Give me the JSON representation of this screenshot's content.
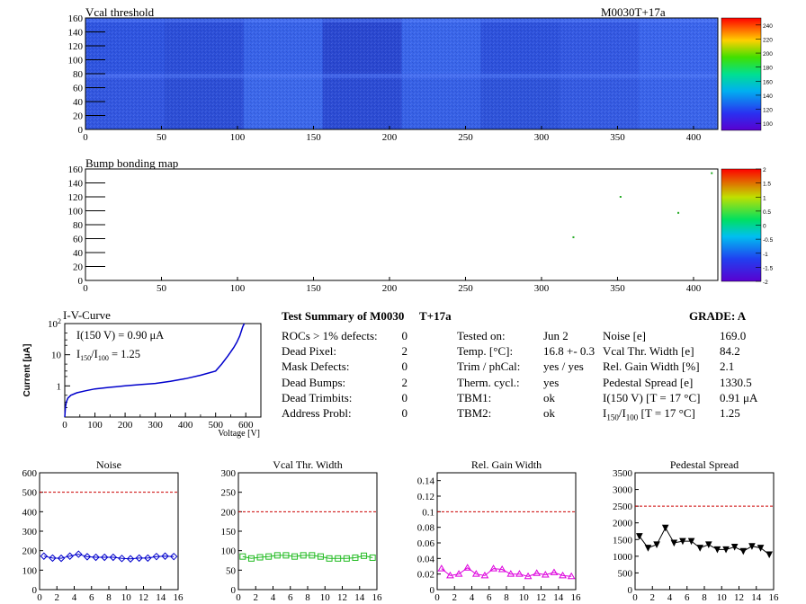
{
  "module_label": "M0030T+17a",
  "colors": {
    "map_base": "#3b5de0",
    "red_line": "#cc0000",
    "iv_line": "#0000cc",
    "noise": "#0000cc",
    "vcal": "#22bb22",
    "gain": "#dd00dd",
    "pedestal": "#000000"
  },
  "vcal_map": {
    "title": "Vcal threshold",
    "x_ticks": [
      "0",
      "50",
      "100",
      "150",
      "200",
      "250",
      "300",
      "350",
      "400"
    ],
    "y_ticks": [
      "0",
      "20",
      "40",
      "60",
      "80",
      "100",
      "120",
      "140",
      "160"
    ],
    "xlim": [
      0,
      416
    ],
    "ylim": [
      0,
      160
    ],
    "z_ticks": [
      "100",
      "120",
      "140",
      "160",
      "180",
      "200",
      "220",
      "240"
    ]
  },
  "bump_map": {
    "title": "Bump bonding map",
    "x_ticks": [
      "0",
      "50",
      "100",
      "150",
      "200",
      "250",
      "300",
      "350",
      "400"
    ],
    "y_ticks": [
      "0",
      "20",
      "40",
      "60",
      "80",
      "100",
      "120",
      "140",
      "160"
    ],
    "z_ticks": [
      "-2",
      "-1.5",
      "-1",
      "-0.5",
      "0",
      "0.5",
      "1",
      "1.5",
      "2"
    ]
  },
  "iv": {
    "title": "I-V-Curve",
    "i150": "I(150 V) = 0.90 μA",
    "ratio": "I150/I100 = 1.25",
    "ratio_label": "I",
    "ratio_sub1": "150",
    "ratio_sep": "/I",
    "ratio_sub2": "100",
    "ratio_value": " =  1.25",
    "ylabel": "Current [μA]",
    "xlabel": "Voltage [V]",
    "x_ticks": [
      "0",
      "100",
      "200",
      "300",
      "400",
      "500",
      "600"
    ],
    "y_ticks": [
      "1",
      "10",
      "10²"
    ],
    "y_tick_exp": "2"
  },
  "summary": {
    "title": "Test Summary of M0030",
    "temp_label": "T+17a",
    "grade": "GRADE:  A",
    "left_rows": [
      {
        "label": "ROCs > 1% defects:",
        "value": "0"
      },
      {
        "label": "Dead Pixel:",
        "value": "2"
      },
      {
        "label": "Mask Defects:",
        "value": "0"
      },
      {
        "label": "Dead Bumps:",
        "value": "2"
      },
      {
        "label": "Dead Trimbits:",
        "value": "0"
      },
      {
        "label": "Address Probl:",
        "value": "0"
      }
    ],
    "mid_rows": [
      {
        "label": "Tested on:",
        "value": "Jun 2"
      },
      {
        "label": "Temp. [°C]:",
        "value": "16.8 +- 0.3"
      },
      {
        "label": "Trim / phCal:",
        "value": "yes / yes"
      },
      {
        "label": "Therm. cycl.:",
        "value": "yes"
      },
      {
        "label": "TBM1:",
        "value": "ok"
      },
      {
        "label": "TBM2:",
        "value": "ok"
      }
    ],
    "right_rows": [
      {
        "label": "Noise [e]",
        "value": "169.0"
      },
      {
        "label": "Vcal Thr. Width [e]",
        "value": "84.2"
      },
      {
        "label": "Rel. Gain Width [%]",
        "value": "2.1"
      },
      {
        "label": "Pedestal Spread [e]",
        "value": "1330.5"
      },
      {
        "label": "I(150 V) [T = 17 °C]",
        "value": "0.91 μA"
      },
      {
        "label": "I150/I100 [T = 17 °C]",
        "value": "1.25"
      }
    ],
    "ratio_row": {
      "pre": "I",
      "sub1": "150",
      "mid": "/I",
      "sub2": "100",
      "post": "  [T = 17 °C]"
    }
  },
  "chart_data": [
    {
      "type": "heatmap",
      "title": "Vcal threshold",
      "xlim": [
        0,
        416
      ],
      "ylim": [
        0,
        160
      ],
      "z_range": [
        90,
        250
      ]
    },
    {
      "type": "heatmap",
      "title": "Bump bonding map",
      "xlim": [
        0,
        416
      ],
      "ylim": [
        0,
        160
      ],
      "z_range": [
        -2,
        2
      ],
      "points": [
        [
          321,
          62
        ],
        [
          352,
          120
        ],
        [
          390,
          97
        ],
        [
          412,
          154
        ]
      ]
    },
    {
      "type": "line",
      "title": "I-V-Curve",
      "xlabel": "Voltage [V]",
      "ylabel": "Current [μA]",
      "log_y": true,
      "xlim": [
        0,
        650
      ],
      "ylim": [
        0.1,
        100
      ],
      "x": [
        0,
        2,
        5,
        10,
        20,
        40,
        70,
        100,
        150,
        200,
        250,
        300,
        350,
        400,
        450,
        500,
        520,
        540,
        560,
        570,
        580,
        590,
        595
      ],
      "y": [
        0.1,
        0.2,
        0.3,
        0.4,
        0.5,
        0.6,
        0.7,
        0.8,
        0.9,
        1.0,
        1.1,
        1.2,
        1.4,
        1.7,
        2.2,
        3.0,
        5.0,
        9.0,
        17,
        25,
        40,
        80,
        100
      ]
    },
    {
      "type": "line",
      "title": "Noise",
      "xlim": [
        0,
        16
      ],
      "ylim": [
        0,
        600
      ],
      "x_ticks": [
        "0",
        "2",
        "4",
        "6",
        "8",
        "10",
        "12",
        "14",
        "16"
      ],
      "y_ticks": [
        "0",
        "100",
        "200",
        "300",
        "400",
        "500",
        "600"
      ],
      "limit": 500,
      "x": [
        0.5,
        1.5,
        2.5,
        3.5,
        4.5,
        5.5,
        6.5,
        7.5,
        8.5,
        9.5,
        10.5,
        11.5,
        12.5,
        13.5,
        14.5,
        15.5
      ],
      "values": [
        172,
        162,
        161,
        172,
        182,
        169,
        166,
        166,
        166,
        160,
        158,
        162,
        162,
        170,
        172,
        170
      ]
    },
    {
      "type": "line",
      "title": "Vcal Thr. Width",
      "xlim": [
        0,
        16
      ],
      "ylim": [
        0,
        300
      ],
      "x_ticks": [
        "0",
        "2",
        "4",
        "6",
        "8",
        "10",
        "12",
        "14",
        "16"
      ],
      "y_ticks": [
        "0",
        "50",
        "100",
        "150",
        "200",
        "250",
        "300"
      ],
      "limit": 200,
      "x": [
        0.5,
        1.5,
        2.5,
        3.5,
        4.5,
        5.5,
        6.5,
        7.5,
        8.5,
        9.5,
        10.5,
        11.5,
        12.5,
        13.5,
        14.5,
        15.5
      ],
      "values": [
        85,
        80,
        83,
        85,
        88,
        88,
        85,
        88,
        88,
        85,
        80,
        80,
        80,
        82,
        87,
        82
      ]
    },
    {
      "type": "line",
      "title": "Rel. Gain Width",
      "xlim": [
        0,
        16
      ],
      "ylim": [
        0,
        0.15
      ],
      "x_ticks": [
        "0",
        "2",
        "4",
        "6",
        "8",
        "10",
        "12",
        "14",
        "16"
      ],
      "y_ticks": [
        "0",
        "0.02",
        "0.04",
        "0.06",
        "0.08",
        "0.1",
        "0.12",
        "0.14"
      ],
      "limit": 0.1,
      "x": [
        0.5,
        1.5,
        2.5,
        3.5,
        4.5,
        5.5,
        6.5,
        7.5,
        8.5,
        9.5,
        10.5,
        11.5,
        12.5,
        13.5,
        14.5,
        15.5
      ],
      "values": [
        0.027,
        0.018,
        0.02,
        0.028,
        0.02,
        0.018,
        0.027,
        0.026,
        0.02,
        0.02,
        0.017,
        0.021,
        0.019,
        0.022,
        0.018,
        0.017
      ]
    },
    {
      "type": "line",
      "title": "Pedestal Spread",
      "xlim": [
        0,
        16
      ],
      "ylim": [
        0,
        3500
      ],
      "x_ticks": [
        "0",
        "2",
        "4",
        "6",
        "8",
        "10",
        "12",
        "14",
        "16"
      ],
      "y_ticks": [
        "0",
        "500",
        "1000",
        "1500",
        "2000",
        "2500",
        "3000",
        "3500"
      ],
      "limit": 2500,
      "x": [
        0.5,
        1.5,
        2.5,
        3.5,
        4.5,
        5.5,
        6.5,
        7.5,
        8.5,
        9.5,
        10.5,
        11.5,
        12.5,
        13.5,
        14.5,
        15.5
      ],
      "values": [
        1600,
        1250,
        1350,
        1850,
        1400,
        1450,
        1450,
        1250,
        1350,
        1200,
        1200,
        1280,
        1150,
        1300,
        1250,
        1050
      ]
    }
  ]
}
